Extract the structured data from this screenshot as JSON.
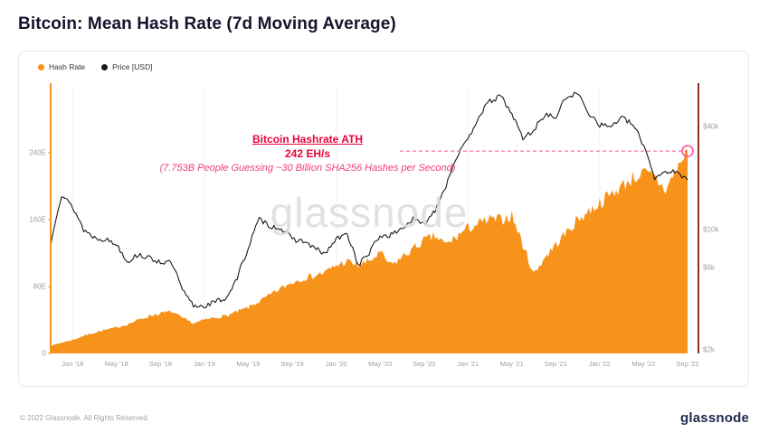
{
  "title": "Bitcoin: Mean Hash Rate (7d Moving Average)",
  "legend": [
    {
      "label": "Hash Rate",
      "color": "#f7931a"
    },
    {
      "label": "Price [USD]",
      "color": "#1a1a1a"
    }
  ],
  "annotation": {
    "title": "Bitcoin Hashrate ATH",
    "value": "242 EH/s",
    "subtitle": "(7.753B People Guessing ~30 Billion SHA256 Hashes per Second)"
  },
  "watermark": "glassnode",
  "footer": {
    "copyright": "© 2022 Glassnode. All Rights Reserved.",
    "logo": "glassnode"
  },
  "colors": {
    "hash_area": "#f7931a",
    "price_line": "#1a1a1a",
    "annotation_red": "#e8043c",
    "annotation_pink": "#f23b74",
    "ath_dash": "#ff4d94",
    "right_axis_line": "#8d2f23",
    "axis_label": "#9aa0a6",
    "grid": "rgba(0,0,0,0.06)"
  },
  "chart_data": {
    "type": "area+line",
    "title": "Bitcoin: Mean Hash Rate (7d Moving Average)",
    "months": [
      "2017-11",
      "2017-12",
      "2018-01",
      "2018-02",
      "2018-03",
      "2018-04",
      "2018-05",
      "2018-06",
      "2018-07",
      "2018-08",
      "2018-09",
      "2018-10",
      "2018-11",
      "2018-12",
      "2019-01",
      "2019-02",
      "2019-03",
      "2019-04",
      "2019-05",
      "2019-06",
      "2019-07",
      "2019-08",
      "2019-09",
      "2019-10",
      "2019-11",
      "2019-12",
      "2020-01",
      "2020-02",
      "2020-03",
      "2020-04",
      "2020-05",
      "2020-06",
      "2020-07",
      "2020-08",
      "2020-09",
      "2020-10",
      "2020-11",
      "2020-12",
      "2021-01",
      "2021-02",
      "2021-03",
      "2021-04",
      "2021-05",
      "2021-06",
      "2021-07",
      "2021-08",
      "2021-09",
      "2021-10",
      "2021-11",
      "2021-12",
      "2022-01",
      "2022-02",
      "2022-03",
      "2022-04",
      "2022-05",
      "2022-06",
      "2022-07",
      "2022-08",
      "2022-09"
    ],
    "series": [
      {
        "name": "Hash Rate",
        "axis": "left",
        "unit": "EH/s",
        "color": "#f7931a",
        "values": [
          9,
          13,
          16,
          21,
          25,
          28,
          31,
          35,
          40,
          45,
          48,
          50,
          42,
          36,
          40,
          43,
          45,
          50,
          55,
          62,
          70,
          78,
          85,
          90,
          93,
          97,
          105,
          110,
          105,
          110,
          120,
          105,
          115,
          125,
          135,
          140,
          130,
          140,
          150,
          155,
          160,
          160,
          165,
          130,
          95,
          115,
          130,
          145,
          160,
          170,
          180,
          190,
          200,
          210,
          215,
          210,
          195,
          220,
          242
        ]
      },
      {
        "name": "Price [USD]",
        "axis": "right",
        "unit": "USD",
        "color": "#1a1a1a",
        "values": [
          8000,
          16000,
          13500,
          10000,
          9000,
          8800,
          8200,
          6500,
          7200,
          6800,
          6500,
          6400,
          4400,
          3600,
          3600,
          3800,
          4000,
          5200,
          7800,
          11500,
          10500,
          10200,
          8800,
          8600,
          7800,
          7200,
          8800,
          9400,
          6200,
          7300,
          9200,
          9300,
          10200,
          11500,
          10700,
          13000,
          18000,
          27000,
          33000,
          46000,
          56000,
          60000,
          47000,
          34000,
          38000,
          47000,
          45000,
          60000,
          62000,
          48000,
          41000,
          40000,
          45000,
          41000,
          31000,
          20000,
          22000,
          21500,
          19500
        ]
      }
    ],
    "left_axis": {
      "scale": "linear",
      "unit": "EH/s",
      "max": 320,
      "ticks": [
        {
          "value": 0,
          "label": "0"
        },
        {
          "value": 80,
          "label": "80E"
        },
        {
          "value": 160,
          "label": "160E"
        },
        {
          "value": 240,
          "label": "240E"
        }
      ]
    },
    "right_axis": {
      "scale": "log",
      "unit": "USD",
      "log_top": 69000,
      "log_bottom": 1900,
      "ticks": [
        {
          "value": 40000,
          "label": "$40k"
        },
        {
          "value": 10000,
          "label": "$10k"
        },
        {
          "value": 6000,
          "label": "$6k"
        },
        {
          "value": 2000,
          "label": "$2k"
        }
      ]
    },
    "x_ticks": {
      "labels": [
        "Jan '18",
        "May '18",
        "Sep '18",
        "Jan '19",
        "May '19",
        "Sep '19",
        "Jan '20",
        "May '20",
        "Sep '20",
        "Jan '21",
        "May '21",
        "Sep '21",
        "Jan '22",
        "May '22",
        "Sep '22"
      ],
      "month_indices": [
        2,
        6,
        10,
        14,
        18,
        22,
        26,
        30,
        34,
        38,
        42,
        46,
        50,
        54,
        58
      ]
    },
    "ath": {
      "value": 242,
      "month": "2022-09",
      "label": "242 EH/s"
    }
  }
}
